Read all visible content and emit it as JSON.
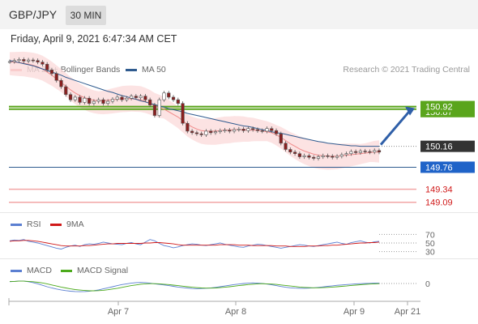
{
  "header": {
    "symbol": "GBP/JPY",
    "timeframe": "30 MIN"
  },
  "datetime": "Friday, April 9, 2021 6:47:34 AM CET",
  "credit": "Research © 2021 Trading Central",
  "legend": {
    "ma20": {
      "label": "MA 20 + Bollinger Bands",
      "color": "#f08a8a"
    },
    "ma50": {
      "label": "MA 50",
      "color": "#2f5b8f"
    },
    "rsi": {
      "label": "RSI",
      "color": "#5b7fd1"
    },
    "rsi_ma": {
      "label": "9MA",
      "color": "#d01919"
    },
    "macd": {
      "label": "MACD",
      "color": "#5b7fd1"
    },
    "macd_signal": {
      "label": "MACD Signal",
      "color": "#4caa1c"
    }
  },
  "colors": {
    "up": "#3a7d1c",
    "resistance": "#5aa51c",
    "support": "#f2a6a6",
    "current": "#2f5b8f",
    "arrow": "#2f5fa8"
  },
  "chart_data": [
    {
      "type": "candlestick",
      "title": "GBP/JPY",
      "x_tick_labels": [
        "Apr 7",
        "Apr 8",
        "Apr 9",
        "Apr 21"
      ],
      "y_tick_labels": [
        "150.92",
        "150.87",
        "150.16",
        "149.76",
        "149.34",
        "149.09"
      ],
      "ylim": [
        148.9,
        152.4
      ],
      "close": [
        151.78,
        151.8,
        151.82,
        151.79,
        151.81,
        151.8,
        151.77,
        151.73,
        151.62,
        151.55,
        151.42,
        151.3,
        151.15,
        151.05,
        151.1,
        151.0,
        151.08,
        150.98,
        151.02,
        151.05,
        150.98,
        151.02,
        151.06,
        151.1,
        151.05,
        151.08,
        151.12,
        151.09,
        151.12,
        151.05,
        150.95,
        150.75,
        151.05,
        151.18,
        151.1,
        151.05,
        150.98,
        150.6,
        150.45,
        150.42,
        150.4,
        150.38,
        150.45,
        150.42,
        150.44,
        150.46,
        150.47,
        150.45,
        150.48,
        150.49,
        150.46,
        150.5,
        150.48,
        150.46,
        150.45,
        150.5,
        150.46,
        150.4,
        150.22,
        150.1,
        150.05,
        150.02,
        149.96,
        149.98,
        149.95,
        149.93,
        149.96,
        149.98,
        149.97,
        149.95,
        149.97,
        150.0,
        150.02,
        150.06,
        150.04,
        150.07,
        150.06,
        150.05,
        150.08,
        150.05
      ],
      "ma20": [
        151.78,
        151.77,
        151.76,
        151.75,
        151.73,
        151.71,
        151.68,
        151.64,
        151.58,
        151.52,
        151.45,
        151.38,
        151.31,
        151.24,
        151.18,
        151.13,
        151.09,
        151.06,
        151.04,
        151.03,
        151.03,
        151.04,
        151.05,
        151.06,
        151.07,
        151.07,
        151.07,
        151.06,
        151.05,
        151.02,
        150.98,
        150.93,
        150.9,
        150.87,
        150.82,
        150.77,
        150.72,
        150.65,
        150.58,
        150.53,
        150.49,
        150.46,
        150.45,
        150.45,
        150.45,
        150.46,
        150.47,
        150.47,
        150.48,
        150.48,
        150.48,
        150.47,
        150.47,
        150.46,
        150.45,
        150.44,
        150.42,
        150.38,
        150.33,
        150.27,
        150.21,
        150.16,
        150.11,
        150.07,
        150.04,
        150.01,
        149.99,
        149.98,
        149.97,
        149.97,
        149.97,
        149.98,
        149.99,
        150.0,
        150.01,
        150.02,
        150.03,
        150.04,
        150.05,
        150.05
      ],
      "ma50": [
        151.8,
        151.78,
        151.76,
        151.74,
        151.72,
        151.7,
        151.67,
        151.64,
        151.61,
        151.58,
        151.55,
        151.52,
        151.48,
        151.45,
        151.42,
        151.39,
        151.36,
        151.33,
        151.3,
        151.27,
        151.24,
        151.21,
        151.19,
        151.16,
        151.13,
        151.11,
        151.08,
        151.06,
        151.03,
        151.01,
        150.98,
        150.96,
        150.93,
        150.91,
        150.88,
        150.86,
        150.84,
        150.82,
        150.79,
        150.77,
        150.75,
        150.73,
        150.71,
        150.69,
        150.67,
        150.65,
        150.63,
        150.61,
        150.59,
        150.57,
        150.55,
        150.54,
        150.52,
        150.5,
        150.48,
        150.46,
        150.44,
        150.42,
        150.41,
        150.39,
        150.37,
        150.35,
        150.33,
        150.31,
        150.29,
        150.27,
        150.25,
        150.24,
        150.22,
        150.21,
        150.2,
        150.19,
        150.18,
        150.17,
        150.17,
        150.16,
        150.16,
        150.16,
        150.16,
        150.16
      ],
      "levels": {
        "resistance": [
          150.92,
          150.87
        ],
        "current": 150.16,
        "target": 149.76,
        "support": [
          149.34,
          149.09
        ]
      }
    },
    {
      "type": "line",
      "title": "RSI",
      "y_tick_labels": [
        "70",
        "50",
        "30"
      ],
      "ylim": [
        20,
        80
      ],
      "series": [
        {
          "name": "RSI",
          "values": [
            55,
            57,
            56,
            58,
            54,
            52,
            50,
            47,
            44,
            41,
            38,
            36,
            40,
            43,
            45,
            42,
            46,
            48,
            47,
            49,
            52,
            50,
            48,
            47,
            46,
            49,
            51,
            48,
            46,
            52,
            58,
            55,
            49,
            44,
            42,
            39,
            41,
            44,
            46,
            48,
            47,
            45,
            44,
            46,
            48,
            50,
            47,
            45,
            43,
            41,
            40,
            43,
            45,
            47,
            46,
            44,
            42,
            40,
            38,
            40,
            42,
            44,
            46,
            45,
            43,
            42,
            44,
            46,
            48,
            50,
            52,
            49,
            47,
            51,
            53,
            55,
            52,
            50,
            53,
            54
          ]
        },
        {
          "name": "9MA",
          "values": [
            54,
            55,
            55,
            56,
            56,
            55,
            54,
            52,
            50,
            48,
            46,
            44,
            43,
            43,
            43,
            43,
            44,
            44,
            45,
            46,
            47,
            48,
            48,
            49,
            49,
            49,
            49,
            49,
            49,
            50,
            50,
            51,
            51,
            50,
            49,
            48,
            46,
            45,
            45,
            45,
            45,
            45,
            45,
            45,
            45,
            46,
            46,
            46,
            46,
            45,
            45,
            45,
            44,
            44,
            44,
            44,
            44,
            43,
            43,
            43,
            42,
            42,
            42,
            42,
            43,
            43,
            43,
            44,
            44,
            45,
            45,
            46,
            47,
            48,
            49,
            50,
            50,
            51,
            51,
            52
          ]
        }
      ]
    },
    {
      "type": "line",
      "title": "MACD",
      "y_tick_labels": [
        "0"
      ],
      "ylim": [
        -1,
        1
      ],
      "series": [
        {
          "name": "MACD",
          "values": [
            0.1,
            0.12,
            0.14,
            0.13,
            0.1,
            0.05,
            -0.02,
            -0.1,
            -0.18,
            -0.25,
            -0.31,
            -0.36,
            -0.4,
            -0.43,
            -0.45,
            -0.46,
            -0.45,
            -0.43,
            -0.4,
            -0.36,
            -0.3,
            -0.24,
            -0.18,
            -0.12,
            -0.06,
            -0.02,
            0.02,
            0.05,
            0.06,
            0.05,
            0.02,
            -0.02,
            -0.05,
            -0.08,
            -0.12,
            -0.16,
            -0.2,
            -0.23,
            -0.26,
            -0.28,
            -0.29,
            -0.28,
            -0.27,
            -0.25,
            -0.22,
            -0.18,
            -0.14,
            -0.1,
            -0.06,
            -0.03,
            0.0,
            0.02,
            0.03,
            0.02,
            0.0,
            -0.03,
            -0.07,
            -0.12,
            -0.17,
            -0.21,
            -0.24,
            -0.26,
            -0.27,
            -0.27,
            -0.26,
            -0.24,
            -0.22,
            -0.19,
            -0.16,
            -0.13,
            -0.1,
            -0.08,
            -0.06,
            -0.04,
            -0.02,
            -0.01,
            0.0,
            0.01,
            0.02,
            0.02
          ]
        },
        {
          "name": "MACD Signal",
          "values": [
            0.12,
            0.12,
            0.13,
            0.13,
            0.12,
            0.1,
            0.07,
            0.03,
            -0.02,
            -0.08,
            -0.14,
            -0.2,
            -0.25,
            -0.3,
            -0.34,
            -0.37,
            -0.39,
            -0.41,
            -0.41,
            -0.4,
            -0.38,
            -0.35,
            -0.31,
            -0.27,
            -0.22,
            -0.17,
            -0.12,
            -0.08,
            -0.04,
            -0.02,
            -0.01,
            -0.01,
            -0.02,
            -0.04,
            -0.06,
            -0.09,
            -0.12,
            -0.15,
            -0.18,
            -0.21,
            -0.23,
            -0.25,
            -0.26,
            -0.26,
            -0.25,
            -0.23,
            -0.21,
            -0.18,
            -0.15,
            -0.12,
            -0.09,
            -0.06,
            -0.04,
            -0.02,
            -0.01,
            -0.02,
            -0.03,
            -0.05,
            -0.08,
            -0.11,
            -0.14,
            -0.17,
            -0.2,
            -0.22,
            -0.23,
            -0.24,
            -0.24,
            -0.23,
            -0.22,
            -0.2,
            -0.18,
            -0.16,
            -0.14,
            -0.11,
            -0.09,
            -0.07,
            -0.05,
            -0.03,
            -0.02,
            -0.01
          ]
        }
      ]
    }
  ]
}
